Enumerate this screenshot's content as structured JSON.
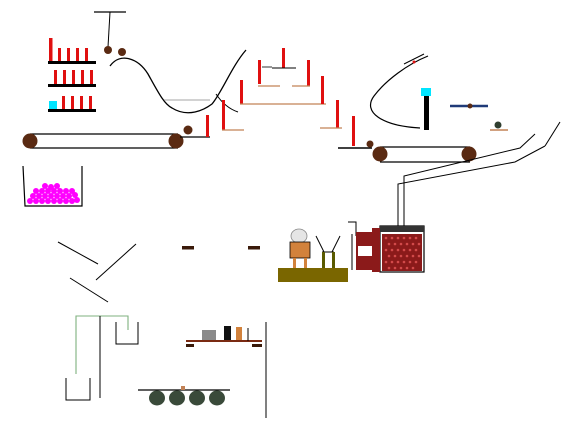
{
  "scene": {
    "background": "#ffffff",
    "colors": {
      "line": "#000000",
      "red": "#e01010",
      "brown_ball": "#5a2a12",
      "conveyor_wheel": "#5a2a12",
      "magenta": "#ff00ff",
      "cyan": "#00e5ff",
      "crate_brown": "#8b1a1a",
      "lamp_grey": "#e5e5e5",
      "robot_orange": "#d2823c",
      "olive_base": "#7a6600",
      "green_pipe": "#7fb07f",
      "dark_green_wheel": "#3a4a3a",
      "navy_bar": "#1f3a78",
      "peach_bar": "#c28256"
    },
    "objects": [
      "domino-row-top",
      "domino-row-middle",
      "domino-row-bottom",
      "cyan-block",
      "top-conveyor",
      "magenta-ball-bin",
      "swinging-rope-balls",
      "ramp-curve",
      "stepped-domino-platform",
      "curved-chute",
      "lamp-robot-machine",
      "red-crate-container",
      "ladder-pipe",
      "seesaw",
      "funnel-lines",
      "bottom-cart",
      "bottom-shelf-items"
    ]
  }
}
